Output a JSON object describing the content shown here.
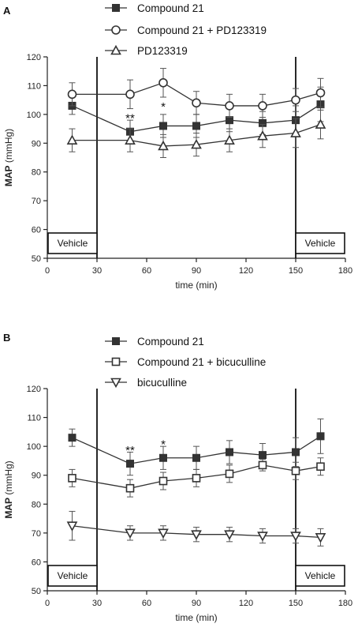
{
  "chart_data": [
    {
      "panel": "A",
      "type": "line",
      "xlabel": "time (min)",
      "ylabel_bold": "MAP",
      "ylabel_unit": " (mmHg)",
      "xlim": [
        0,
        180
      ],
      "ylim": [
        50,
        120
      ],
      "xticks": [
        0,
        30,
        60,
        90,
        120,
        150,
        180
      ],
      "yticks": [
        50,
        60,
        70,
        80,
        90,
        100,
        110,
        120
      ],
      "vlines": [
        30,
        150
      ],
      "annotations": [
        {
          "text": "Vehicle",
          "side": "left"
        },
        {
          "text": "Vehicle",
          "side": "right"
        },
        {
          "text": "**",
          "x": 50,
          "y": 99
        },
        {
          "text": "*",
          "x": 70,
          "y": 103
        }
      ],
      "legend_placement": "top",
      "x": [
        15,
        50,
        70,
        90,
        110,
        130,
        150,
        165
      ],
      "series": [
        {
          "name": "Compound 21",
          "marker": "square-filled",
          "values": [
            103,
            94,
            96,
            96,
            98,
            97,
            98,
            103.5
          ],
          "err": [
            3,
            4,
            4,
            4,
            4,
            4,
            5,
            6
          ]
        },
        {
          "name": "Compound 21 + PD123319",
          "marker": "circle-open",
          "values": [
            107,
            107,
            111,
            104,
            103,
            103,
            105,
            107.5
          ],
          "err": [
            4,
            5,
            5,
            4,
            4,
            4,
            4,
            5
          ]
        },
        {
          "name": "PD123319",
          "marker": "triangle-open",
          "values": [
            91,
            91,
            89,
            89.5,
            91,
            92.5,
            93.5,
            96.5
          ],
          "err": [
            4,
            4,
            4,
            4,
            4,
            4,
            5,
            5
          ]
        }
      ]
    },
    {
      "panel": "B",
      "type": "line",
      "xlabel": "time (min)",
      "ylabel_bold": "MAP",
      "ylabel_unit": " (mmHg)",
      "xlim": [
        0,
        180
      ],
      "ylim": [
        50,
        120
      ],
      "xticks": [
        0,
        30,
        60,
        90,
        120,
        150,
        180
      ],
      "yticks": [
        50,
        60,
        70,
        80,
        90,
        100,
        110,
        120
      ],
      "vlines": [
        30,
        150
      ],
      "annotations": [
        {
          "text": "Vehicle",
          "side": "left"
        },
        {
          "text": "Vehicle",
          "side": "right"
        },
        {
          "text": "**",
          "x": 50,
          "y": 99
        },
        {
          "text": "*",
          "x": 70,
          "y": 101
        }
      ],
      "legend_placement": "top",
      "x": [
        15,
        50,
        70,
        90,
        110,
        130,
        150,
        165
      ],
      "series": [
        {
          "name": "Compound 21",
          "marker": "square-filled",
          "values": [
            103,
            94,
            96,
            96,
            98,
            97,
            98,
            103.5
          ],
          "err": [
            3,
            4,
            4,
            4,
            4,
            4,
            5,
            6
          ]
        },
        {
          "name": "Compound 21 + bicuculline",
          "marker": "square-open",
          "values": [
            89,
            85.5,
            88,
            89,
            90.5,
            93.5,
            91.5,
            93
          ],
          "err": [
            3,
            3,
            3,
            3,
            3,
            2,
            3,
            3
          ]
        },
        {
          "name": "bicuculline",
          "marker": "triangle-down-open",
          "values": [
            72.5,
            70,
            70,
            69.5,
            69.5,
            69,
            69,
            68.5
          ],
          "err": [
            5,
            2.5,
            2.5,
            2.5,
            2.5,
            2.5,
            2.5,
            3
          ]
        }
      ]
    }
  ]
}
